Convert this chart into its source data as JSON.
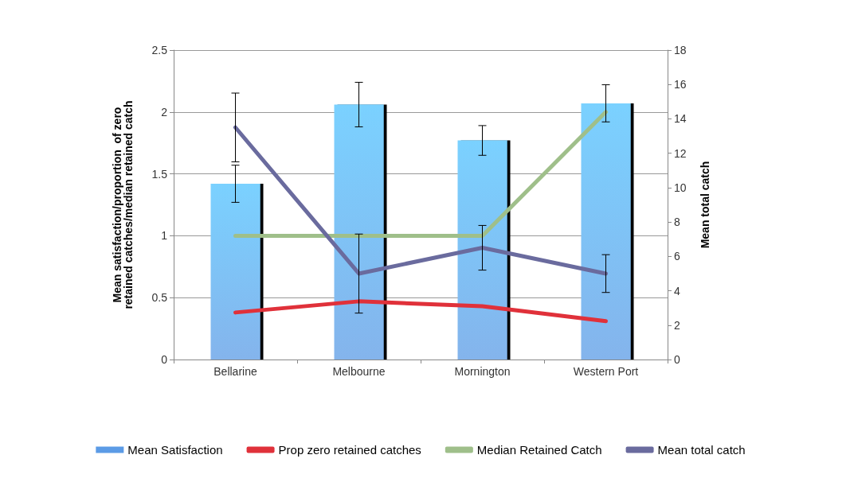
{
  "chart_data": {
    "type": "bar",
    "categories": [
      "Bellarine",
      "Melbourne",
      "Mornington",
      "Western Port"
    ],
    "ylabel": "Mean satisfaction/proportion  of zero retained catches/median retained catch",
    "y2label": "Mean total catch",
    "ylim": [
      0,
      2.5
    ],
    "yticks": [
      0,
      0.5,
      1,
      1.5,
      2,
      2.5
    ],
    "y2lim": [
      0,
      18
    ],
    "y2ticks": [
      0,
      2,
      4,
      6,
      8,
      10,
      12,
      14,
      16,
      18
    ],
    "grid": "y",
    "legend": "bottom",
    "marker": "none",
    "line_style": "solid",
    "series": [
      {
        "name": "Mean Satisfaction",
        "color": "#5b9be6",
        "values": [
          1.42,
          2.06,
          1.77,
          2.07
        ],
        "errors": [
          0.15,
          0.18,
          0.12,
          0.15
        ]
      },
      {
        "name": "Prop zero retained catches",
        "type": "line",
        "color": "#e0313a",
        "values": [
          0.38,
          0.47,
          0.43,
          0.31
        ]
      },
      {
        "name": "Median Retained Catch",
        "type": "line",
        "color": "#9fbf8a",
        "values": [
          1,
          1,
          1,
          2
        ]
      },
      {
        "name": "Mean total catch",
        "type": "line",
        "axis": "y2",
        "color": "#6a6b9e",
        "values": [
          13.5,
          5.0,
          6.5,
          5.0
        ],
        "errors": [
          2.0,
          2.3,
          1.3,
          1.1
        ]
      }
    ]
  }
}
